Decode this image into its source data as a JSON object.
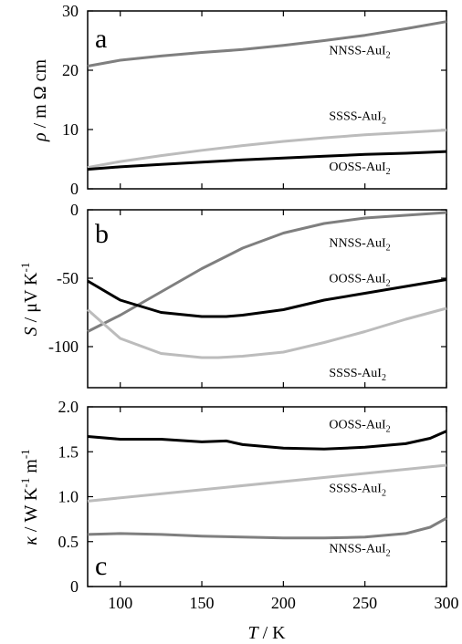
{
  "chart_data": [
    {
      "type": "line",
      "panel": "a",
      "ylabel": "ρ / m Ω cm",
      "xlim": [
        80,
        300
      ],
      "ylim": [
        0,
        30
      ],
      "yticks": [
        0,
        10,
        20,
        30
      ],
      "series": [
        {
          "name": "NNSS-AuI2",
          "color": "#7f7f7f",
          "x": [
            80,
            100,
            125,
            150,
            175,
            200,
            225,
            250,
            275,
            300
          ],
          "y": [
            20.7,
            21.7,
            22.4,
            23.0,
            23.5,
            24.2,
            25.0,
            25.9,
            27.0,
            28.2
          ]
        },
        {
          "name": "SSSS-AuI2",
          "color": "#bcbcbc",
          "x": [
            80,
            100,
            125,
            150,
            175,
            200,
            225,
            250,
            275,
            300
          ],
          "y": [
            3.6,
            4.6,
            5.6,
            6.5,
            7.3,
            8.0,
            8.6,
            9.1,
            9.5,
            9.9
          ]
        },
        {
          "name": "OOSS-AuI2",
          "color": "#000000",
          "x": [
            80,
            100,
            125,
            150,
            175,
            200,
            225,
            250,
            275,
            300
          ],
          "y": [
            3.3,
            3.7,
            4.1,
            4.5,
            4.9,
            5.2,
            5.5,
            5.8,
            6.0,
            6.3
          ]
        }
      ],
      "labels": [
        {
          "series": "NNSS-AuI2",
          "text": "NNSS-AuI",
          "sub": "2",
          "x": 228,
          "y": 22.7
        },
        {
          "series": "SSSS-AuI2",
          "text": "SSSS-AuI",
          "sub": "2",
          "x": 228,
          "y": 11.6
        },
        {
          "series": "OOSS-AuI2",
          "text": "OOSS-AuI",
          "sub": "2",
          "x": 228,
          "y": 3.1
        }
      ]
    },
    {
      "type": "line",
      "panel": "b",
      "ylabel": "S / μV K-1",
      "xlim": [
        80,
        300
      ],
      "ylim": [
        -130,
        0
      ],
      "yticks": [
        -100,
        -50,
        0
      ],
      "series": [
        {
          "name": "NNSS-AuI2",
          "color": "#7f7f7f",
          "x": [
            80,
            100,
            125,
            150,
            175,
            200,
            225,
            250,
            275,
            300
          ],
          "y": [
            -89,
            -77,
            -60,
            -43,
            -28,
            -17,
            -10,
            -6,
            -4,
            -2
          ]
        },
        {
          "name": "OOSS-AuI2",
          "color": "#000000",
          "x": [
            80,
            100,
            125,
            150,
            165,
            175,
            200,
            225,
            250,
            275,
            300
          ],
          "y": [
            -52,
            -66,
            -75,
            -78,
            -78,
            -77,
            -73,
            -66,
            -61,
            -56,
            -51
          ]
        },
        {
          "name": "SSSS-AuI2",
          "color": "#bcbcbc",
          "x": [
            80,
            100,
            125,
            150,
            160,
            175,
            200,
            225,
            250,
            275,
            300
          ],
          "y": [
            -73,
            -94,
            -105,
            -108,
            -108,
            -107,
            -104,
            -97,
            -89,
            -80,
            -72
          ]
        }
      ],
      "labels": [
        {
          "series": "NNSS-AuI2",
          "text": "NNSS-AuI",
          "sub": "2",
          "x": 228,
          "y": -27
        },
        {
          "series": "OOSS-AuI2",
          "text": "OOSS-AuI",
          "sub": "2",
          "x": 228,
          "y": -53
        },
        {
          "series": "SSSS-AuI2",
          "text": "SSSS-AuI",
          "sub": "2",
          "x": 228,
          "y": -122
        }
      ]
    },
    {
      "type": "line",
      "panel": "c",
      "ylabel": "κ / W K-1 m-1",
      "xlabel": "T / K",
      "xlim": [
        80,
        300
      ],
      "ylim": [
        0,
        2.0
      ],
      "yticks": [
        0,
        0.5,
        1.0,
        1.5,
        2.0
      ],
      "ytick_labels": [
        "0",
        "0.5",
        "1.0",
        "1.5",
        "2.0"
      ],
      "xticks": [
        100,
        150,
        200,
        250,
        300
      ],
      "series": [
        {
          "name": "OOSS-AuI2",
          "color": "#000000",
          "x": [
            80,
            100,
            125,
            150,
            165,
            175,
            200,
            225,
            250,
            275,
            290,
            300
          ],
          "y": [
            1.67,
            1.64,
            1.64,
            1.61,
            1.62,
            1.58,
            1.54,
            1.53,
            1.55,
            1.59,
            1.65,
            1.73
          ]
        },
        {
          "name": "SSSS-AuI2",
          "color": "#bcbcbc",
          "x": [
            80,
            300
          ],
          "y": [
            0.95,
            1.35
          ]
        },
        {
          "name": "NNSS-AuI2",
          "color": "#7f7f7f",
          "x": [
            80,
            100,
            125,
            150,
            175,
            200,
            225,
            250,
            275,
            290,
            300
          ],
          "y": [
            0.58,
            0.59,
            0.58,
            0.56,
            0.55,
            0.54,
            0.54,
            0.55,
            0.59,
            0.66,
            0.76
          ]
        }
      ],
      "labels": [
        {
          "series": "OOSS-AuI2",
          "text": "OOSS-AuI",
          "sub": "2",
          "x": 228,
          "y": 1.76
        },
        {
          "series": "SSSS-AuI2",
          "text": "SSSS-AuI",
          "sub": "2",
          "x": 228,
          "y": 1.05
        },
        {
          "series": "NNSS-AuI2",
          "text": "NNSS-AuI",
          "sub": "2",
          "x": 228,
          "y": 0.38
        }
      ]
    }
  ],
  "panels": {
    "a": {
      "letter": "a"
    },
    "b": {
      "letter": "b"
    },
    "c": {
      "letter": "c"
    }
  },
  "axis": {
    "xlabel_T": "T",
    "xlabel_unit": " / K"
  }
}
